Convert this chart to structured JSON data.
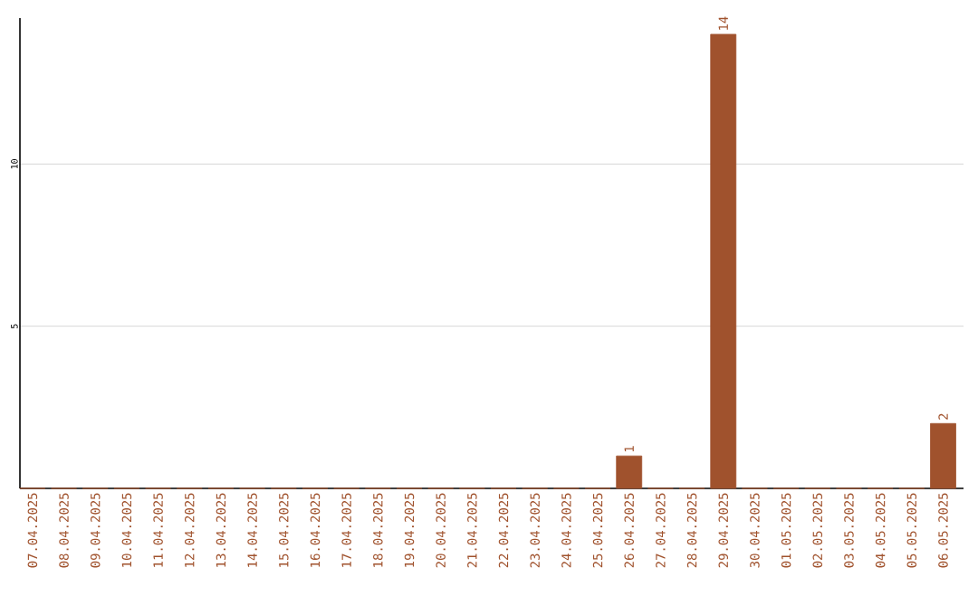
{
  "chart_data": {
    "type": "bar",
    "categories": [
      "07.04.2025",
      "08.04.2025",
      "09.04.2025",
      "10.04.2025",
      "11.04.2025",
      "12.04.2025",
      "13.04.2025",
      "14.04.2025",
      "15.04.2025",
      "16.04.2025",
      "17.04.2025",
      "18.04.2025",
      "19.04.2025",
      "20.04.2025",
      "21.04.2025",
      "22.04.2025",
      "23.04.2025",
      "24.04.2025",
      "25.04.2025",
      "26.04.2025",
      "27.04.2025",
      "28.04.2025",
      "29.04.2025",
      "30.04.2025",
      "01.05.2025",
      "02.05.2025",
      "03.05.2025",
      "04.05.2025",
      "05.05.2025",
      "06.05.2025"
    ],
    "values": [
      0,
      0,
      0,
      0,
      0,
      0,
      0,
      0,
      0,
      0,
      0,
      0,
      0,
      0,
      0,
      0,
      0,
      0,
      0,
      1,
      0,
      0,
      14,
      0,
      0,
      0,
      0,
      0,
      0,
      2
    ],
    "value_labels": [
      null,
      null,
      null,
      null,
      null,
      null,
      null,
      null,
      null,
      null,
      null,
      null,
      null,
      null,
      null,
      null,
      null,
      null,
      null,
      "1",
      null,
      null,
      "14",
      null,
      null,
      null,
      null,
      null,
      null,
      "2"
    ],
    "color": "#a0522d",
    "ylim": [
      0,
      14.5
    ],
    "yticks": [
      5,
      10
    ],
    "grid": "y"
  }
}
